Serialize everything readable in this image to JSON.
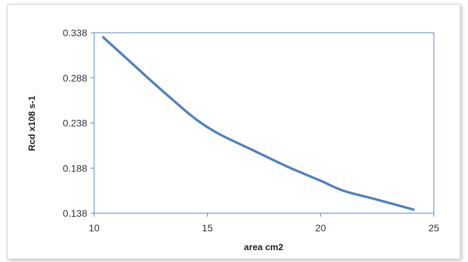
{
  "chart_data": {
    "type": "line",
    "title": "",
    "xlabel": "area cm2",
    "ylabel": "Rcd x108 s-1",
    "xlim": [
      10,
      25
    ],
    "ylim": [
      0.138,
      0.338
    ],
    "x_ticks": [
      "10",
      "15",
      "20",
      "25"
    ],
    "y_ticks": [
      "0.138",
      "0.188",
      "0.238",
      "0.288",
      "0.338"
    ],
    "grid": false,
    "legend": "none",
    "series": [
      {
        "color": "#4f81bd",
        "x": [
          10.4,
          11.5,
          12.5,
          13.5,
          14.5,
          15.5,
          17,
          18.5,
          20,
          21,
          22.5,
          24.1
        ],
        "y": [
          0.333,
          0.308,
          0.285,
          0.263,
          0.242,
          0.226,
          0.208,
          0.19,
          0.174,
          0.163,
          0.153,
          0.142
        ]
      }
    ]
  }
}
